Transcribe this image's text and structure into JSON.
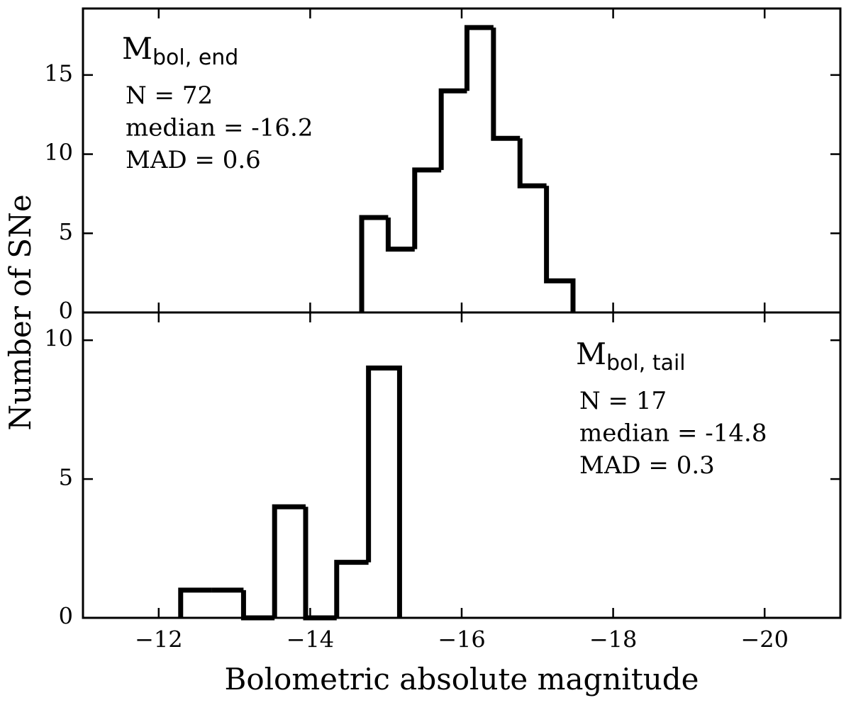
{
  "chart_data": [
    {
      "type": "histogram",
      "ylabel": "Number of SNe",
      "annotation": {
        "main": "M",
        "sub": "bol, end"
      },
      "stats": [
        "N = 72",
        "median = -16.2",
        "MAD = 0.6"
      ],
      "bins": [
        -14.68,
        -15.03,
        -15.38,
        -15.73,
        -16.07,
        -16.42,
        -16.77,
        -17.12,
        -17.47
      ],
      "values": [
        6,
        4,
        9,
        14,
        18,
        11,
        8,
        2
      ],
      "color": "#000000",
      "xlim": [
        -11,
        -21
      ],
      "ylim": [
        0,
        19.2
      ],
      "xticks": [
        -12,
        -14,
        -16,
        -18,
        -20
      ],
      "yticks": [
        0,
        5,
        10,
        15
      ]
    },
    {
      "type": "histogram",
      "xlabel": "Bolometric absolute magnitude",
      "annotation": {
        "main": "M",
        "sub": "bol, tail"
      },
      "stats": [
        "N = 17",
        "median = -14.8",
        "MAD = 0.3"
      ],
      "bins": [
        -12.29,
        -12.7,
        -13.12,
        -13.53,
        -13.94,
        -14.35,
        -14.77,
        -15.18
      ],
      "values": [
        1,
        1,
        0,
        4,
        0,
        2,
        9
      ],
      "color": "#000000",
      "xlim": [
        -11,
        -21
      ],
      "ylim": [
        0,
        11
      ],
      "xticks": [
        {
          "value": -12,
          "label": "−12"
        },
        {
          "value": -14,
          "label": "−14"
        },
        {
          "value": -16,
          "label": "−16"
        },
        {
          "value": -18,
          "label": "−18"
        },
        {
          "value": -20,
          "label": "−20"
        }
      ],
      "yticks": [
        0,
        5,
        10
      ]
    }
  ]
}
